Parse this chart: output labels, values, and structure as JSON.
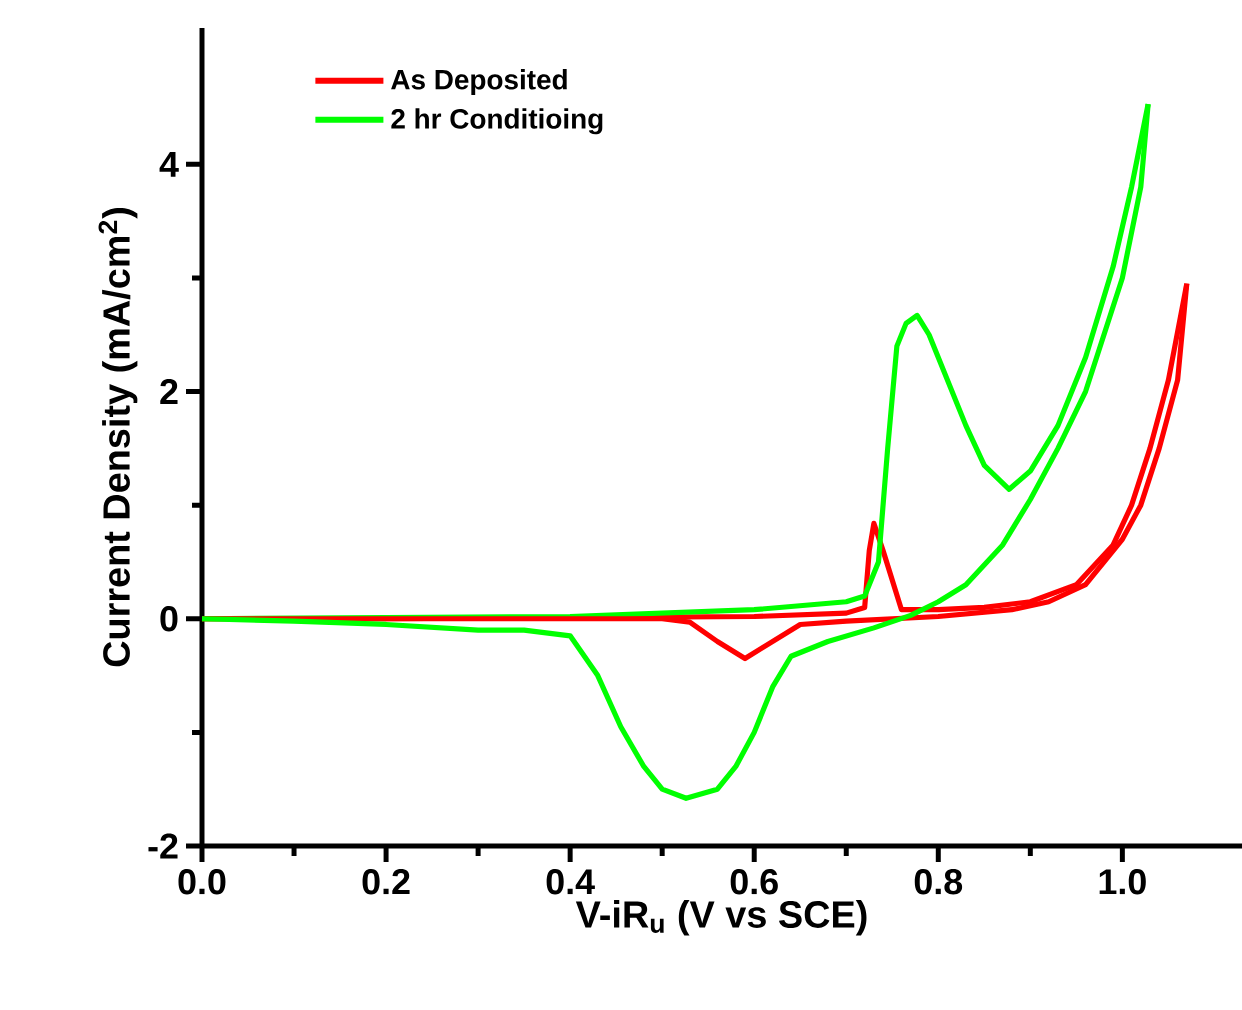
{
  "chart_data": {
    "type": "line",
    "xlabel": "V-iR$_{u}$ (V vs SCE)",
    "ylabel": "Current Density (mA/cm$^{2}$)",
    "xlim": [
      0,
      1.13
    ],
    "ylim": [
      -2,
      5.2
    ],
    "xticks": [
      {
        "value": 0,
        "label": "0.0"
      },
      {
        "value": 0.2,
        "label": "0.2"
      },
      {
        "value": 0.4,
        "label": "0.4"
      },
      {
        "value": 0.6,
        "label": "0.6"
      },
      {
        "value": 0.8,
        "label": "0.8"
      },
      {
        "value": 1,
        "label": "1.0"
      }
    ],
    "yticks": [
      -2,
      0,
      2,
      4
    ],
    "grid": false,
    "legend": "top left",
    "marker": "none",
    "line_style": "solid",
    "series": [
      {
        "name": "As Deposited",
        "color": "#ff0000",
        "x": [
          0,
          0.2,
          0.4,
          0.6,
          0.7,
          0.72,
          0.725,
          0.73,
          0.74,
          0.76,
          0.8,
          0.85,
          0.9,
          0.95,
          0.99,
          1.01,
          1.03,
          1.05,
          1.07
        ],
        "values": [
          0,
          0,
          0.01,
          0.02,
          0.05,
          0.1,
          0.6,
          0.84,
          0.6,
          0.08,
          0.08,
          0.1,
          0.15,
          0.3,
          0.65,
          1.0,
          1.5,
          2.1,
          2.95
        ]
      },
      {
        "name": "2 hr Conditioing",
        "color": "#00ff00",
        "x": [
          0,
          0.2,
          0.4,
          0.6,
          0.7,
          0.72,
          0.735,
          0.745,
          0.755,
          0.765,
          0.777,
          0.79,
          0.81,
          0.83,
          0.85,
          0.877,
          0.9,
          0.93,
          0.96,
          0.99,
          1.01,
          1.028
        ],
        "values": [
          0,
          0.01,
          0.02,
          0.08,
          0.15,
          0.2,
          0.5,
          1.5,
          2.4,
          2.6,
          2.67,
          2.5,
          2.1,
          1.7,
          1.35,
          1.14,
          1.3,
          1.7,
          2.3,
          3.1,
          3.8,
          4.53
        ]
      },
      {
        "color": "#ff0000",
        "x": [
          1.07,
          1.06,
          1.04,
          1.02,
          1.0,
          0.96,
          0.92,
          0.88,
          0.8,
          0.75,
          0.7,
          0.65,
          0.62,
          0.59,
          0.56,
          0.53,
          0.5,
          0.4,
          0.2,
          0
        ],
        "values": [
          2.95,
          2.1,
          1.5,
          1.0,
          0.7,
          0.3,
          0.15,
          0.08,
          0.02,
          0,
          -0.02,
          -0.05,
          -0.2,
          -0.35,
          -0.2,
          -0.03,
          0,
          0,
          0,
          0
        ]
      },
      {
        "color": "#00ff00",
        "x": [
          1.028,
          1.02,
          1.0,
          0.98,
          0.96,
          0.93,
          0.9,
          0.87,
          0.83,
          0.8,
          0.77,
          0.73,
          0.68,
          0.64,
          0.62,
          0.6,
          0.58,
          0.56,
          0.526,
          0.5,
          0.48,
          0.455,
          0.43,
          0.4,
          0.35,
          0.3,
          0.2,
          0.1,
          0
        ],
        "values": [
          4.53,
          3.8,
          3.0,
          2.5,
          2.0,
          1.5,
          1.05,
          0.65,
          0.3,
          0.15,
          0.03,
          -0.08,
          -0.2,
          -0.33,
          -0.6,
          -1.0,
          -1.3,
          -1.5,
          -1.58,
          -1.5,
          -1.3,
          -0.95,
          -0.5,
          -0.15,
          -0.1,
          -0.1,
          -0.05,
          -0.02,
          0
        ]
      }
    ]
  }
}
